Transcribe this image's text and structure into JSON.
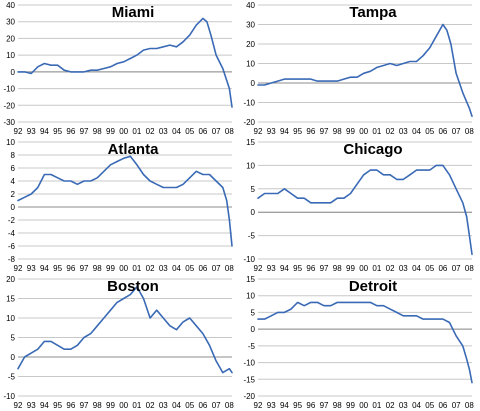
{
  "chart_data": [
    {
      "type": "line",
      "title": "Miami",
      "x_labels": [
        "92",
        "93",
        "94",
        "95",
        "96",
        "97",
        "98",
        "99",
        "00",
        "01",
        "02",
        "03",
        "04",
        "05",
        "06",
        "07",
        "08"
      ],
      "y_ticks": [
        40,
        30,
        20,
        10,
        0,
        -10,
        -20,
        -30
      ],
      "ylim": [
        -30,
        40
      ],
      "grid": true,
      "series": [
        {
          "x": [
            1992.0,
            1992.5,
            1993.0,
            1993.5,
            1994.0,
            1994.5,
            1995.0,
            1995.5,
            1996.0,
            1996.5,
            1997.0,
            1997.5,
            1998.0,
            1998.5,
            1999.0,
            1999.5,
            2000.0,
            2000.5,
            2001.0,
            2001.5,
            2002.0,
            2002.5,
            2003.0,
            2003.5,
            2004.0,
            2004.5,
            2005.0,
            2005.5,
            2006.0,
            2006.3,
            2006.6,
            2007.0,
            2007.5,
            2008.0,
            2008.2
          ],
          "y": [
            0,
            0,
            -1,
            3,
            5,
            4,
            4,
            1,
            0,
            0,
            0,
            1,
            1,
            2,
            3,
            5,
            6,
            8,
            10,
            13,
            14,
            14,
            15,
            16,
            15,
            18,
            22,
            28,
            32,
            30,
            22,
            10,
            2,
            -10,
            -21
          ]
        }
      ]
    },
    {
      "type": "line",
      "title": "Tampa",
      "x_labels": [
        "92",
        "93",
        "94",
        "95",
        "96",
        "97",
        "98",
        "99",
        "00",
        "01",
        "02",
        "03",
        "04",
        "05",
        "06",
        "07",
        "08"
      ],
      "y_ticks": [
        40,
        30,
        20,
        10,
        0,
        -10,
        -20
      ],
      "ylim": [
        -20,
        40
      ],
      "grid": true,
      "series": [
        {
          "x": [
            1992.0,
            1992.5,
            1993.0,
            1993.5,
            1994.0,
            1994.5,
            1995.0,
            1995.5,
            1996.0,
            1996.5,
            1997.0,
            1997.5,
            1998.0,
            1998.5,
            1999.0,
            1999.5,
            2000.0,
            2000.5,
            2001.0,
            2001.5,
            2002.0,
            2002.5,
            2003.0,
            2003.5,
            2004.0,
            2004.5,
            2005.0,
            2005.5,
            2006.0,
            2006.3,
            2006.6,
            2007.0,
            2007.5,
            2008.0,
            2008.2
          ],
          "y": [
            -1,
            -1,
            0,
            1,
            2,
            2,
            2,
            2,
            2,
            1,
            1,
            1,
            1,
            2,
            3,
            3,
            5,
            6,
            8,
            9,
            10,
            9,
            10,
            11,
            11,
            14,
            18,
            24,
            30,
            27,
            20,
            5,
            -5,
            -13,
            -17
          ]
        }
      ]
    },
    {
      "type": "line",
      "title": "Atlanta",
      "x_labels": [
        "92",
        "93",
        "94",
        "95",
        "96",
        "97",
        "98",
        "99",
        "00",
        "01",
        "02",
        "03",
        "04",
        "05",
        "06",
        "07",
        "08"
      ],
      "y_ticks": [
        10,
        8,
        6,
        4,
        2,
        0,
        -2,
        -4,
        -6,
        -8
      ],
      "ylim": [
        -8,
        10
      ],
      "grid": true,
      "series": [
        {
          "x": [
            1992.0,
            1992.5,
            1993.0,
            1993.5,
            1994.0,
            1994.5,
            1995.0,
            1995.5,
            1996.0,
            1996.5,
            1997.0,
            1997.5,
            1998.0,
            1998.5,
            1999.0,
            1999.5,
            2000.0,
            2000.5,
            2001.0,
            2001.5,
            2002.0,
            2002.5,
            2003.0,
            2003.5,
            2004.0,
            2004.5,
            2005.0,
            2005.5,
            2006.0,
            2006.5,
            2007.0,
            2007.5,
            2007.8,
            2008.0,
            2008.2
          ],
          "y": [
            1,
            1.5,
            2,
            3,
            5,
            5,
            4.5,
            4,
            4,
            3.5,
            4,
            4,
            4.5,
            5.5,
            6.5,
            7,
            7.5,
            7.8,
            6.5,
            5,
            4,
            3.5,
            3,
            3,
            3,
            3.5,
            4.5,
            5.5,
            5,
            5,
            4,
            3,
            1,
            -2,
            -6
          ]
        }
      ]
    },
    {
      "type": "line",
      "title": "Chicago",
      "x_labels": [
        "92",
        "93",
        "94",
        "95",
        "96",
        "97",
        "98",
        "99",
        "00",
        "01",
        "02",
        "03",
        "04",
        "05",
        "06",
        "07",
        "08"
      ],
      "y_ticks": [
        15,
        10,
        5,
        0,
        -5,
        -10
      ],
      "ylim": [
        -10,
        15
      ],
      "grid": true,
      "series": [
        {
          "x": [
            1992.0,
            1992.5,
            1993.0,
            1993.5,
            1994.0,
            1994.5,
            1995.0,
            1995.5,
            1996.0,
            1996.5,
            1997.0,
            1997.5,
            1998.0,
            1998.5,
            1999.0,
            1999.5,
            2000.0,
            2000.5,
            2001.0,
            2001.5,
            2002.0,
            2002.5,
            2003.0,
            2003.5,
            2004.0,
            2004.5,
            2005.0,
            2005.5,
            2006.0,
            2006.5,
            2007.0,
            2007.5,
            2007.8,
            2008.0,
            2008.2
          ],
          "y": [
            3,
            4,
            4,
            4,
            5,
            4,
            3,
            3,
            2,
            2,
            2,
            2,
            3,
            3,
            4,
            6,
            8,
            9,
            9,
            8,
            8,
            7,
            7,
            8,
            9,
            9,
            9,
            10,
            10,
            8,
            5,
            2,
            -1,
            -5,
            -9
          ]
        }
      ]
    },
    {
      "type": "line",
      "title": "Boston",
      "x_labels": [
        "92",
        "93",
        "94",
        "95",
        "96",
        "97",
        "98",
        "99",
        "00",
        "01",
        "02",
        "03",
        "04",
        "05",
        "06",
        "07",
        "08"
      ],
      "y_ticks": [
        20,
        15,
        10,
        5,
        0,
        -5,
        -10
      ],
      "ylim": [
        -10,
        20
      ],
      "grid": true,
      "series": [
        {
          "x": [
            1992.0,
            1992.5,
            1993.0,
            1993.5,
            1994.0,
            1994.5,
            1995.0,
            1995.5,
            1996.0,
            1996.5,
            1997.0,
            1997.5,
            1998.0,
            1998.5,
            1999.0,
            1999.5,
            2000.0,
            2000.5,
            2001.0,
            2001.5,
            2002.0,
            2002.5,
            2003.0,
            2003.5,
            2004.0,
            2004.5,
            2005.0,
            2005.5,
            2006.0,
            2006.5,
            2007.0,
            2007.5,
            2008.0,
            2008.2
          ],
          "y": [
            -3,
            0,
            1,
            2,
            4,
            4,
            3,
            2,
            2,
            3,
            5,
            6,
            8,
            10,
            12,
            14,
            15,
            16,
            18,
            15,
            10,
            12,
            10,
            8,
            7,
            9,
            10,
            8,
            6,
            3,
            -1,
            -4,
            -3,
            -4
          ]
        }
      ]
    },
    {
      "type": "line",
      "title": "Detroit",
      "x_labels": [
        "92",
        "93",
        "94",
        "95",
        "96",
        "97",
        "98",
        "99",
        "00",
        "01",
        "02",
        "03",
        "04",
        "05",
        "06",
        "07",
        "08"
      ],
      "y_ticks": [
        15,
        10,
        5,
        0,
        -5,
        -10,
        -15,
        -20
      ],
      "ylim": [
        -20,
        15
      ],
      "grid": true,
      "series": [
        {
          "x": [
            1992.0,
            1992.5,
            1993.0,
            1993.5,
            1994.0,
            1994.5,
            1995.0,
            1995.5,
            1996.0,
            1996.5,
            1997.0,
            1997.5,
            1998.0,
            1998.5,
            1999.0,
            1999.5,
            2000.0,
            2000.5,
            2001.0,
            2001.5,
            2002.0,
            2002.5,
            2003.0,
            2003.5,
            2004.0,
            2004.5,
            2005.0,
            2005.5,
            2006.0,
            2006.5,
            2007.0,
            2007.5,
            2007.8,
            2008.0,
            2008.2
          ],
          "y": [
            3,
            3,
            4,
            5,
            5,
            6,
            8,
            7,
            8,
            8,
            7,
            7,
            8,
            8,
            8,
            8,
            8,
            8,
            7,
            7,
            6,
            5,
            4,
            4,
            4,
            3,
            3,
            3,
            3,
            2,
            -2,
            -5,
            -9,
            -12,
            -16
          ]
        }
      ]
    }
  ]
}
